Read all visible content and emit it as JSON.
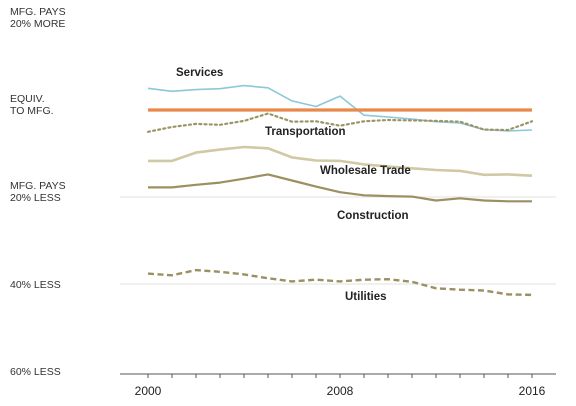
{
  "chart_data": {
    "type": "line",
    "x": [
      2000,
      2001,
      2002,
      2003,
      2004,
      2005,
      2006,
      2007,
      2008,
      2009,
      2010,
      2011,
      2012,
      2013,
      2014,
      2015,
      2016
    ],
    "ylim": [
      -60,
      20
    ],
    "y_ticks": [
      {
        "value": 20,
        "lines": [
          "MFG. PAYS",
          "20% MORE"
        ]
      },
      {
        "value": 0,
        "lines": [
          "EQUIV.",
          "TO MFG."
        ]
      },
      {
        "value": -20,
        "lines": [
          "MFG. PAYS",
          "20% LESS"
        ]
      },
      {
        "value": -40,
        "lines": [
          "40% LESS"
        ]
      },
      {
        "value": -60,
        "lines": [
          "60% LESS"
        ]
      }
    ],
    "x_ticks": [
      "2000",
      "2008",
      "2016"
    ],
    "gridlines": [
      -20,
      -40
    ],
    "series": [
      {
        "name": "Services",
        "color": "#8cc8d8",
        "style": "solid",
        "width": 1.6,
        "values": [
          5,
          4.3,
          4.7,
          4.9,
          5.6,
          5.1,
          2.1,
          0.8,
          3.2,
          -1.2,
          -1.6,
          -2.1,
          -2.7,
          -3.0,
          -4.5,
          -4.8,
          -4.6
        ]
      },
      {
        "name": "Manufacturing",
        "color": "#e8894a",
        "style": "solid",
        "width": 3.2,
        "values": [
          0,
          0,
          0,
          0,
          0,
          0,
          0,
          0,
          0,
          0,
          0,
          0,
          0,
          0,
          0,
          0,
          0
        ]
      },
      {
        "name": "Transportation",
        "color": "#9e9463",
        "style": "dotted",
        "width": 2.2,
        "values": [
          -5.0,
          -3.9,
          -3.2,
          -3.4,
          -2.5,
          -0.8,
          -2.7,
          -2.6,
          -3.6,
          -2.6,
          -2.3,
          -2.4,
          -2.5,
          -2.7,
          -4.5,
          -4.6,
          -2.6
        ]
      },
      {
        "name": "Wholesale Trade",
        "color": "#d1c8a4",
        "style": "solid",
        "width": 2.6,
        "values": [
          -11.7,
          -11.7,
          -9.8,
          -9.1,
          -8.5,
          -8.8,
          -10.9,
          -11.6,
          -11.7,
          -12.5,
          -13.0,
          -13.4,
          -13.8,
          -14.0,
          -14.9,
          -14.8,
          -15.1
        ]
      },
      {
        "name": "Construction",
        "color": "#9c8f62",
        "style": "solid",
        "width": 2.2,
        "values": [
          -17.8,
          -17.8,
          -17.2,
          -16.7,
          -15.8,
          -14.8,
          -16.2,
          -17.6,
          -18.9,
          -19.6,
          -19.8,
          -19.9,
          -20.8,
          -20.3,
          -20.8,
          -21.0,
          -21.0
        ]
      },
      {
        "name": "Utilities",
        "color": "#9c8f62",
        "style": "dashed",
        "width": 2.4,
        "values": [
          -37.6,
          -38.0,
          -36.8,
          -37.2,
          -37.8,
          -38.7,
          -39.4,
          -39.0,
          -39.4,
          -39.0,
          -38.9,
          -39.5,
          -41.0,
          -41.3,
          -41.5,
          -42.4,
          -42.5
        ]
      }
    ],
    "labels": [
      {
        "text": "Services",
        "series": "Services"
      },
      {
        "text": "Transportation",
        "series": "Transportation"
      },
      {
        "text": "Wholesale Trade",
        "series": "Wholesale Trade"
      },
      {
        "text": "Construction",
        "series": "Construction"
      },
      {
        "text": "Utilities",
        "series": "Utilities"
      }
    ]
  }
}
